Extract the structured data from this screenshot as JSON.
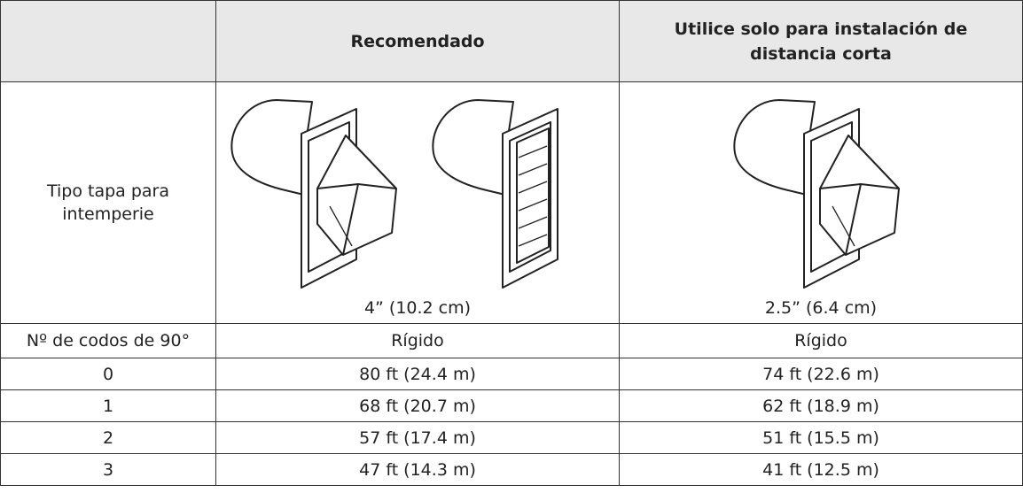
{
  "table": {
    "header": [
      "Recomendado",
      "Utilice solo para instalación de distancia corta"
    ],
    "vent_row": {
      "label": "Tipo tapa para intemperie",
      "sizes": [
        "4” (10.2 cm)",
        "2.5” (6.4 cm)"
      ]
    },
    "subheader": [
      "Nº de codos de 90°",
      "Rígido",
      "Rígido"
    ],
    "rows": [
      [
        "0",
        "80 ft (24.4 m)",
        "74 ft (22.6 m)"
      ],
      [
        "1",
        "68 ft (20.7 m)",
        "62 ft (18.9 m)"
      ],
      [
        "2",
        "57 ft (17.4 m)",
        "51 ft (15.5 m)"
      ],
      [
        "3",
        "47 ft (14.3 m)",
        "41 ft (12.5 m)"
      ]
    ]
  }
}
